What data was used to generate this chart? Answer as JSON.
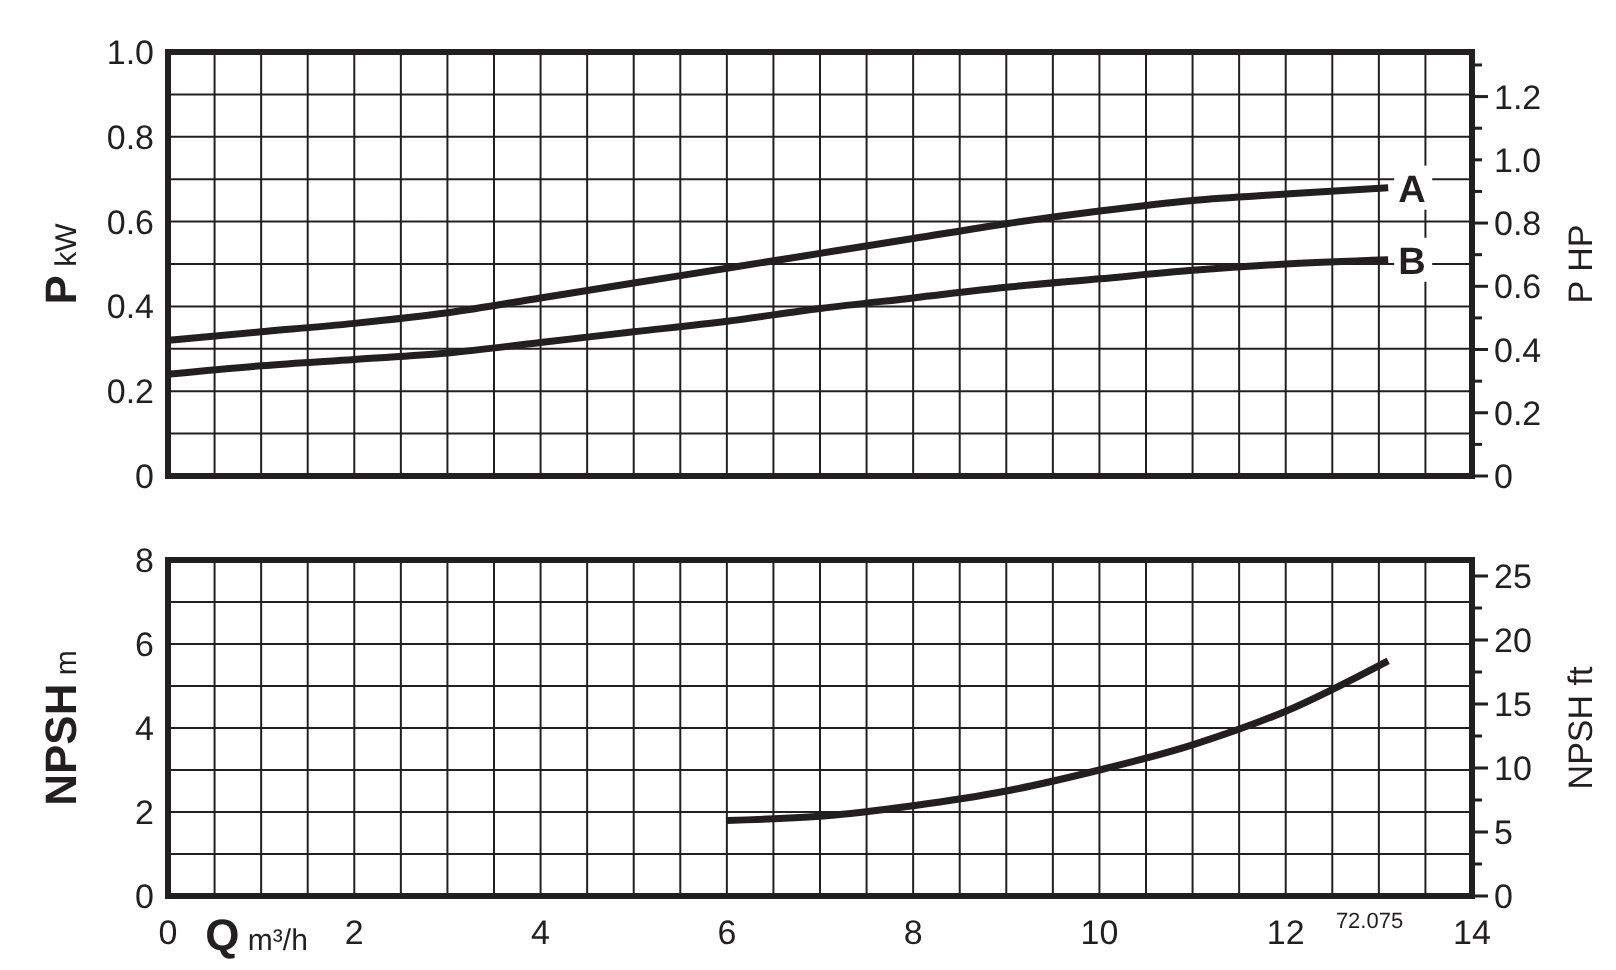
{
  "chart_data": [
    {
      "type": "line",
      "ylabel": "P kW",
      "y2label": "P HP",
      "xlim": [
        0,
        14
      ],
      "xticks": [
        0,
        {
          "value": 0.5,
          "label": null
        },
        {
          "value": 1,
          "label": null
        },
        {
          "value": 1.5,
          "label": null
        },
        2,
        {
          "value": 2.5,
          "label": null
        },
        {
          "value": 3,
          "label": null
        },
        {
          "value": 3.5,
          "label": null
        },
        4,
        {
          "value": 4.5,
          "label": null
        },
        {
          "value": 5,
          "label": null
        },
        {
          "value": 5.5,
          "label": null
        },
        6,
        {
          "value": 6.5,
          "label": null
        },
        {
          "value": 7,
          "label": null
        },
        {
          "value": 7.5,
          "label": null
        },
        8,
        {
          "value": 8.5,
          "label": null
        },
        {
          "value": 9,
          "label": null
        },
        {
          "value": 9.5,
          "label": null
        },
        10,
        {
          "value": 10.5,
          "label": null
        },
        {
          "value": 11,
          "label": null
        },
        {
          "value": 11.5,
          "label": null
        },
        12,
        {
          "value": 12.5,
          "label": null
        },
        {
          "value": 13,
          "label": null
        },
        {
          "value": 13.5,
          "label": null
        },
        14
      ],
      "ylim": [
        0,
        1
      ],
      "yticks": [
        0,
        {
          "value": 0.1,
          "label": null
        },
        0.2,
        {
          "value": 0.3,
          "label": null
        },
        0.4,
        {
          "value": 0.5,
          "label": null
        },
        0.6,
        {
          "value": 0.7,
          "label": null
        },
        0.8,
        {
          "value": 0.9,
          "label": null
        },
        {
          "value": 1,
          "label": "1.0"
        }
      ],
      "y2lim": [
        0,
        1.341
      ],
      "y2ticks": [
        0,
        {
          "value": 0.1,
          "label": null
        },
        0.2,
        {
          "value": 0.3,
          "label": null
        },
        0.4,
        {
          "value": 0.5,
          "label": null
        },
        0.6,
        {
          "value": 0.7,
          "label": null
        },
        0.8,
        {
          "value": 0.9,
          "label": null
        },
        {
          "value": 1,
          "label": "1.0"
        },
        {
          "value": 1.1,
          "label": null
        },
        1.2,
        {
          "value": 1.3,
          "label": null
        }
      ],
      "grid": true,
      "tick_labels": "y",
      "line_style": "solid",
      "x": [
        0,
        1,
        2,
        3,
        4,
        5,
        6,
        7,
        8,
        9,
        10,
        11,
        12,
        13.1
      ],
      "series": [
        {
          "name": "A",
          "color": "#231f20",
          "values": [
            0.32,
            0.34,
            0.36,
            0.385,
            0.42,
            0.455,
            0.49,
            0.525,
            0.56,
            0.595,
            0.625,
            0.65,
            0.665,
            0.68
          ]
        },
        {
          "name": "B",
          "color": "#231f20",
          "values": [
            0.24,
            0.26,
            0.275,
            0.29,
            0.315,
            0.34,
            0.365,
            0.395,
            0.42,
            0.445,
            0.465,
            0.485,
            0.5,
            0.51
          ]
        }
      ]
    },
    {
      "type": "line",
      "ylabel": "NPSH m",
      "y2label": "NPSH ft",
      "xlabel": "Q m³/h",
      "annotations": [
        "72.075"
      ],
      "xlim": [
        0,
        14
      ],
      "xticks": [
        0,
        {
          "value": 0.5,
          "label": null
        },
        {
          "value": 1,
          "label": null
        },
        {
          "value": 1.5,
          "label": null
        },
        2,
        {
          "value": 2.5,
          "label": null
        },
        {
          "value": 3,
          "label": null
        },
        {
          "value": 3.5,
          "label": null
        },
        4,
        {
          "value": 4.5,
          "label": null
        },
        {
          "value": 5,
          "label": null
        },
        {
          "value": 5.5,
          "label": null
        },
        6,
        {
          "value": 6.5,
          "label": null
        },
        {
          "value": 7,
          "label": null
        },
        {
          "value": 7.5,
          "label": null
        },
        8,
        {
          "value": 8.5,
          "label": null
        },
        {
          "value": 9,
          "label": null
        },
        {
          "value": 9.5,
          "label": null
        },
        10,
        {
          "value": 10.5,
          "label": null
        },
        {
          "value": 11,
          "label": null
        },
        {
          "value": 11.5,
          "label": null
        },
        12,
        {
          "value": 12.5,
          "label": null
        },
        {
          "value": 13,
          "label": null
        },
        {
          "value": 13.5,
          "label": null
        },
        14
      ],
      "ylim": [
        0,
        8
      ],
      "yticks": [
        0,
        {
          "value": 1,
          "label": null
        },
        2,
        {
          "value": 3,
          "label": null
        },
        4,
        {
          "value": 5,
          "label": null
        },
        6,
        {
          "value": 7,
          "label": null
        },
        8
      ],
      "y2lim": [
        0,
        26.25
      ],
      "y2ticks": [
        0,
        {
          "value": 2.5,
          "label": null
        },
        5,
        {
          "value": 7.5,
          "label": null
        },
        10,
        {
          "value": 12.5,
          "label": null
        },
        15,
        {
          "value": 17.5,
          "label": null
        },
        20,
        {
          "value": 22.5,
          "label": null
        },
        25
      ],
      "grid": true,
      "line_style": "solid",
      "series": [
        {
          "color": "#231f20",
          "x": [
            6,
            7,
            8,
            9,
            10,
            11,
            12,
            13.1
          ],
          "values": [
            1.8,
            1.9,
            2.15,
            2.5,
            3.0,
            3.6,
            4.4,
            5.6
          ]
        }
      ]
    }
  ]
}
